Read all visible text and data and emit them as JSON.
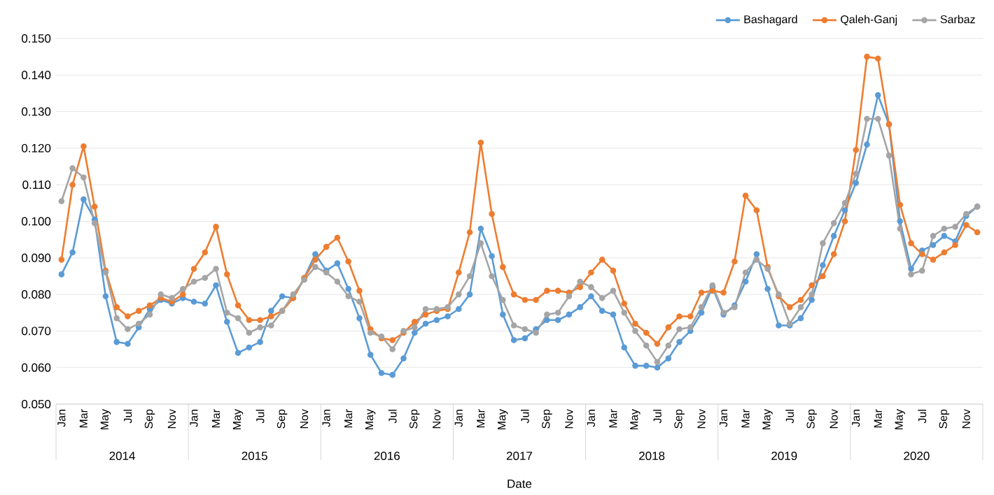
{
  "chart_data": {
    "type": "line",
    "xlabel": "Date",
    "categories": [
      "Jan",
      null,
      "Mar",
      null,
      "May",
      null,
      "Jul",
      null,
      "Sep",
      null,
      "Nov",
      null,
      "Jan",
      null,
      "Mar",
      null,
      "May",
      null,
      "Jul",
      null,
      "Sep",
      null,
      "Nov",
      null,
      "Jan",
      null,
      "Mar",
      null,
      "May",
      null,
      "Jul",
      null,
      "Sep",
      null,
      "Nov",
      null,
      "Jan",
      null,
      "Mar",
      null,
      "May",
      null,
      "Jul",
      null,
      "Sep",
      null,
      "Nov",
      null,
      "Jan",
      null,
      "Mar",
      null,
      "May",
      null,
      "Jul",
      null,
      "Sep",
      null,
      "Nov",
      null,
      "Jan",
      null,
      "Mar",
      null,
      "May",
      null,
      "Jul",
      null,
      "Sep",
      null,
      "Nov",
      null,
      "Jan",
      null,
      "Mar",
      null,
      "May",
      null,
      "Jul",
      null,
      "Sep",
      null,
      "Nov",
      null
    ],
    "annotations": [
      "2014",
      "2015",
      "2016",
      "2017",
      "2018",
      "2019",
      "2020"
    ],
    "series": [
      {
        "name": "Bashagard",
        "color": "#5b9bd5",
        "values": [
          0.0855,
          0.0915,
          0.106,
          0.1005,
          0.0795,
          0.067,
          0.0665,
          0.071,
          0.076,
          0.0785,
          0.0775,
          0.079,
          0.078,
          0.0775,
          0.0825,
          0.0725,
          0.064,
          0.0655,
          0.067,
          0.0755,
          0.0795,
          0.079,
          0.0845,
          0.091,
          0.0865,
          0.0885,
          0.0815,
          0.0735,
          0.0635,
          0.0585,
          0.058,
          0.0625,
          0.0695,
          0.072,
          0.073,
          0.074,
          0.076,
          0.08,
          0.098,
          0.0905,
          0.0745,
          0.0675,
          0.068,
          0.0705,
          0.073,
          0.073,
          0.0745,
          0.0765,
          0.0795,
          0.0755,
          0.0745,
          0.0655,
          0.0605,
          0.0605,
          0.06,
          0.0625,
          0.067,
          0.07,
          0.075,
          0.082,
          0.0745,
          0.077,
          0.0835,
          0.091,
          0.0815,
          0.0715,
          0.0715,
          0.0735,
          0.0785,
          0.088,
          0.096,
          0.103,
          0.1105,
          0.121,
          0.1345,
          0.1265,
          0.1,
          0.087,
          0.092,
          0.0935,
          0.096,
          0.0945,
          0.1015,
          0.104
        ]
      },
      {
        "name": "Qaleh-Ganj",
        "color": "#ed7d31",
        "values": [
          0.0895,
          0.11,
          0.1205,
          0.104,
          0.0865,
          0.0765,
          0.074,
          0.0755,
          0.077,
          0.079,
          0.078,
          0.08,
          0.087,
          0.0915,
          0.0985,
          0.0855,
          0.077,
          0.073,
          0.073,
          0.074,
          0.0755,
          0.079,
          0.0845,
          0.0895,
          0.093,
          0.0955,
          0.089,
          0.081,
          0.0705,
          0.068,
          0.0675,
          0.0695,
          0.0725,
          0.0745,
          0.0755,
          0.076,
          0.086,
          0.097,
          0.1215,
          0.102,
          0.0875,
          0.08,
          0.0785,
          0.0785,
          0.081,
          0.081,
          0.0805,
          0.082,
          0.086,
          0.0895,
          0.0865,
          0.0775,
          0.072,
          0.0695,
          0.0665,
          0.071,
          0.074,
          0.074,
          0.0805,
          0.081,
          0.0805,
          0.089,
          0.107,
          0.103,
          0.0875,
          0.0795,
          0.0765,
          0.0785,
          0.0825,
          0.085,
          0.091,
          0.1,
          0.1195,
          0.145,
          0.1445,
          0.1265,
          0.1045,
          0.094,
          0.091,
          0.0895,
          0.0915,
          0.0935,
          0.099,
          0.097
        ]
      },
      {
        "name": "Sarbaz",
        "color": "#a5a5a5",
        "values": [
          0.1055,
          0.1145,
          0.112,
          0.0995,
          0.086,
          0.0735,
          0.0705,
          0.072,
          0.0745,
          0.08,
          0.079,
          0.0815,
          0.0835,
          0.0845,
          0.087,
          0.075,
          0.0735,
          0.0695,
          0.071,
          0.0715,
          0.0755,
          0.08,
          0.084,
          0.0875,
          0.086,
          0.0835,
          0.0795,
          0.078,
          0.0695,
          0.0685,
          0.065,
          0.07,
          0.071,
          0.076,
          0.076,
          0.0765,
          0.08,
          0.085,
          0.094,
          0.085,
          0.0785,
          0.0715,
          0.0705,
          0.0695,
          0.0745,
          0.075,
          0.0795,
          0.0835,
          0.082,
          0.079,
          0.081,
          0.075,
          0.07,
          0.066,
          0.0615,
          0.066,
          0.0705,
          0.071,
          0.0765,
          0.0825,
          0.075,
          0.0765,
          0.086,
          0.0895,
          0.087,
          0.08,
          0.072,
          0.0765,
          0.08,
          0.094,
          0.0995,
          0.105,
          0.113,
          0.128,
          0.128,
          0.118,
          0.098,
          0.0855,
          0.0865,
          0.096,
          0.098,
          0.0985,
          0.102,
          0.104
        ]
      }
    ],
    "ylim": [
      0.05,
      0.15
    ],
    "yticks": [
      {
        "value": 0.05,
        "label": "0.050"
      },
      {
        "value": 0.06,
        "label": "0.060"
      },
      {
        "value": 0.07,
        "label": "0.070"
      },
      {
        "value": 0.08,
        "label": "0.080"
      },
      {
        "value": 0.09,
        "label": "0.090"
      },
      {
        "value": 0.1,
        "label": "0.100"
      },
      {
        "value": 0.11,
        "label": "0.110"
      },
      {
        "value": 0.12,
        "label": "0.120"
      },
      {
        "value": 0.13,
        "label": "0.130"
      },
      {
        "value": 0.14,
        "label": "0.140"
      },
      {
        "value": 0.15,
        "label": "0.150"
      }
    ],
    "grid": "y",
    "legend": "top right",
    "marker": "circle",
    "line_style": "solid"
  }
}
